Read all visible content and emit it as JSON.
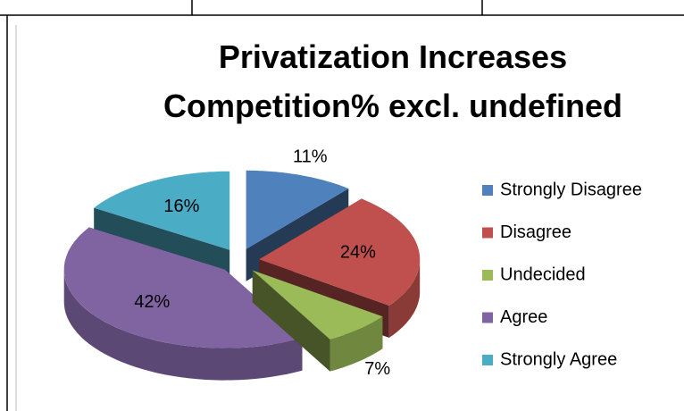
{
  "chart_data": {
    "type": "pie3d",
    "title": "Privatization Increases Competition% excl. undefined",
    "categories": [
      "Strongly Disagree",
      "Disagree",
      "Undecided",
      "Agree",
      "Strongly Agree"
    ],
    "values": [
      11,
      24,
      7,
      42,
      16
    ],
    "value_labels": [
      "11%",
      "24%",
      "7%",
      "42%",
      "16%"
    ],
    "colors": [
      "#4f81bd",
      "#c0504d",
      "#9bbb59",
      "#8064a2",
      "#4bacc6"
    ],
    "legend": "right"
  }
}
